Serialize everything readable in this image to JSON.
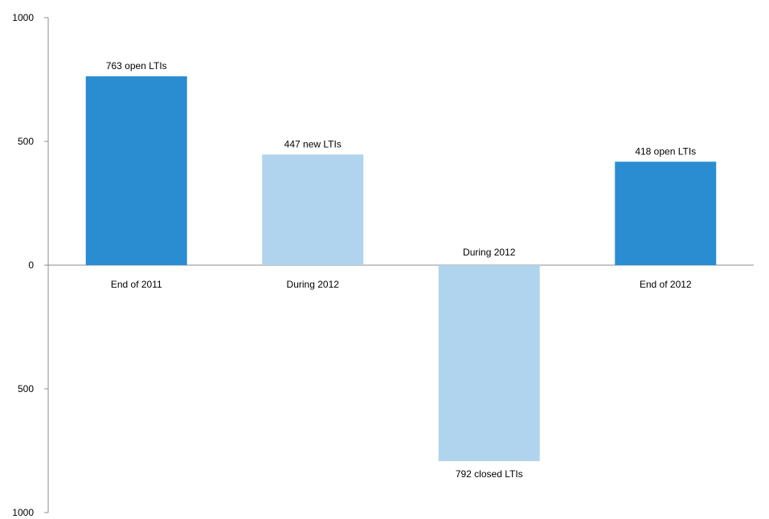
{
  "chart_data": {
    "type": "bar",
    "title": "",
    "xlabel": "",
    "ylabel": "",
    "ylim": [
      -1000,
      1000
    ],
    "y_ticks": [
      {
        "value": 1000,
        "label": "1000"
      },
      {
        "value": 500,
        "label": "500"
      },
      {
        "value": 0,
        "label": "0"
      },
      {
        "value": -500,
        "label": "500"
      },
      {
        "value": -1000,
        "label": "1000"
      }
    ],
    "grid": false,
    "bars": [
      {
        "category": "End of 2011",
        "value": 763,
        "data_label": "763 open LTIs",
        "color": "#2A8DD2"
      },
      {
        "category": "During 2012",
        "value": 447,
        "data_label": "447 new LTIs",
        "color": "#B0D4EE"
      },
      {
        "category": "During 2012",
        "value": -792,
        "data_label": "792 closed LTIs",
        "color": "#B0D4EE"
      },
      {
        "category": "End of 2012",
        "value": 418,
        "data_label": "418 open LTIs",
        "color": "#2A8DD2"
      }
    ]
  }
}
